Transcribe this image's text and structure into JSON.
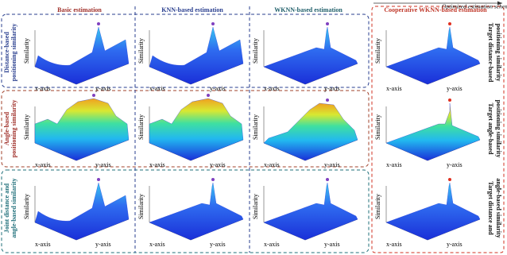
{
  "header": {
    "scheme": "Optimized estimation scheme",
    "columns": [
      "Basic estimation",
      "KNN-based estimation",
      "WKNN-based estimation",
      "Cooperative WKNN-based estimation"
    ]
  },
  "rows": [
    {
      "left": [
        "Distance-based",
        "positioning similarity"
      ],
      "right": [
        "Target distance-based",
        "positioning similarity"
      ]
    },
    {
      "left": [
        "Angle-based",
        "positioning similarity"
      ],
      "right": [
        "Target angle-based",
        "positioning similarity"
      ]
    },
    {
      "left": [
        "Joint distance and",
        "angle-based similarity"
      ],
      "right": [
        "Target distance and",
        "angle-based similarity"
      ]
    }
  ],
  "axes": {
    "x": "x-axis",
    "y": "y-axis",
    "z": "Similarity"
  }
}
